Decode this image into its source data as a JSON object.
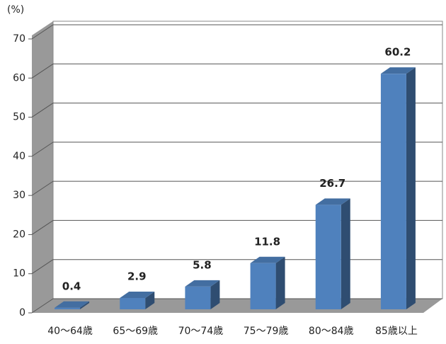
{
  "chart_data": {
    "type": "bar",
    "y_label": "(%)",
    "categories": [
      "40～64歳",
      "65～69歳",
      "70～74歳",
      "75～79歳",
      "80～84歳",
      "85歳以上"
    ],
    "values": [
      0.4,
      2.9,
      5.8,
      11.8,
      26.7,
      60.2
    ],
    "color": "#4f81bd",
    "ylim": [
      0,
      70
    ],
    "yticks": [
      0,
      10,
      20,
      30,
      40,
      50,
      60,
      70
    ],
    "grid": true
  }
}
